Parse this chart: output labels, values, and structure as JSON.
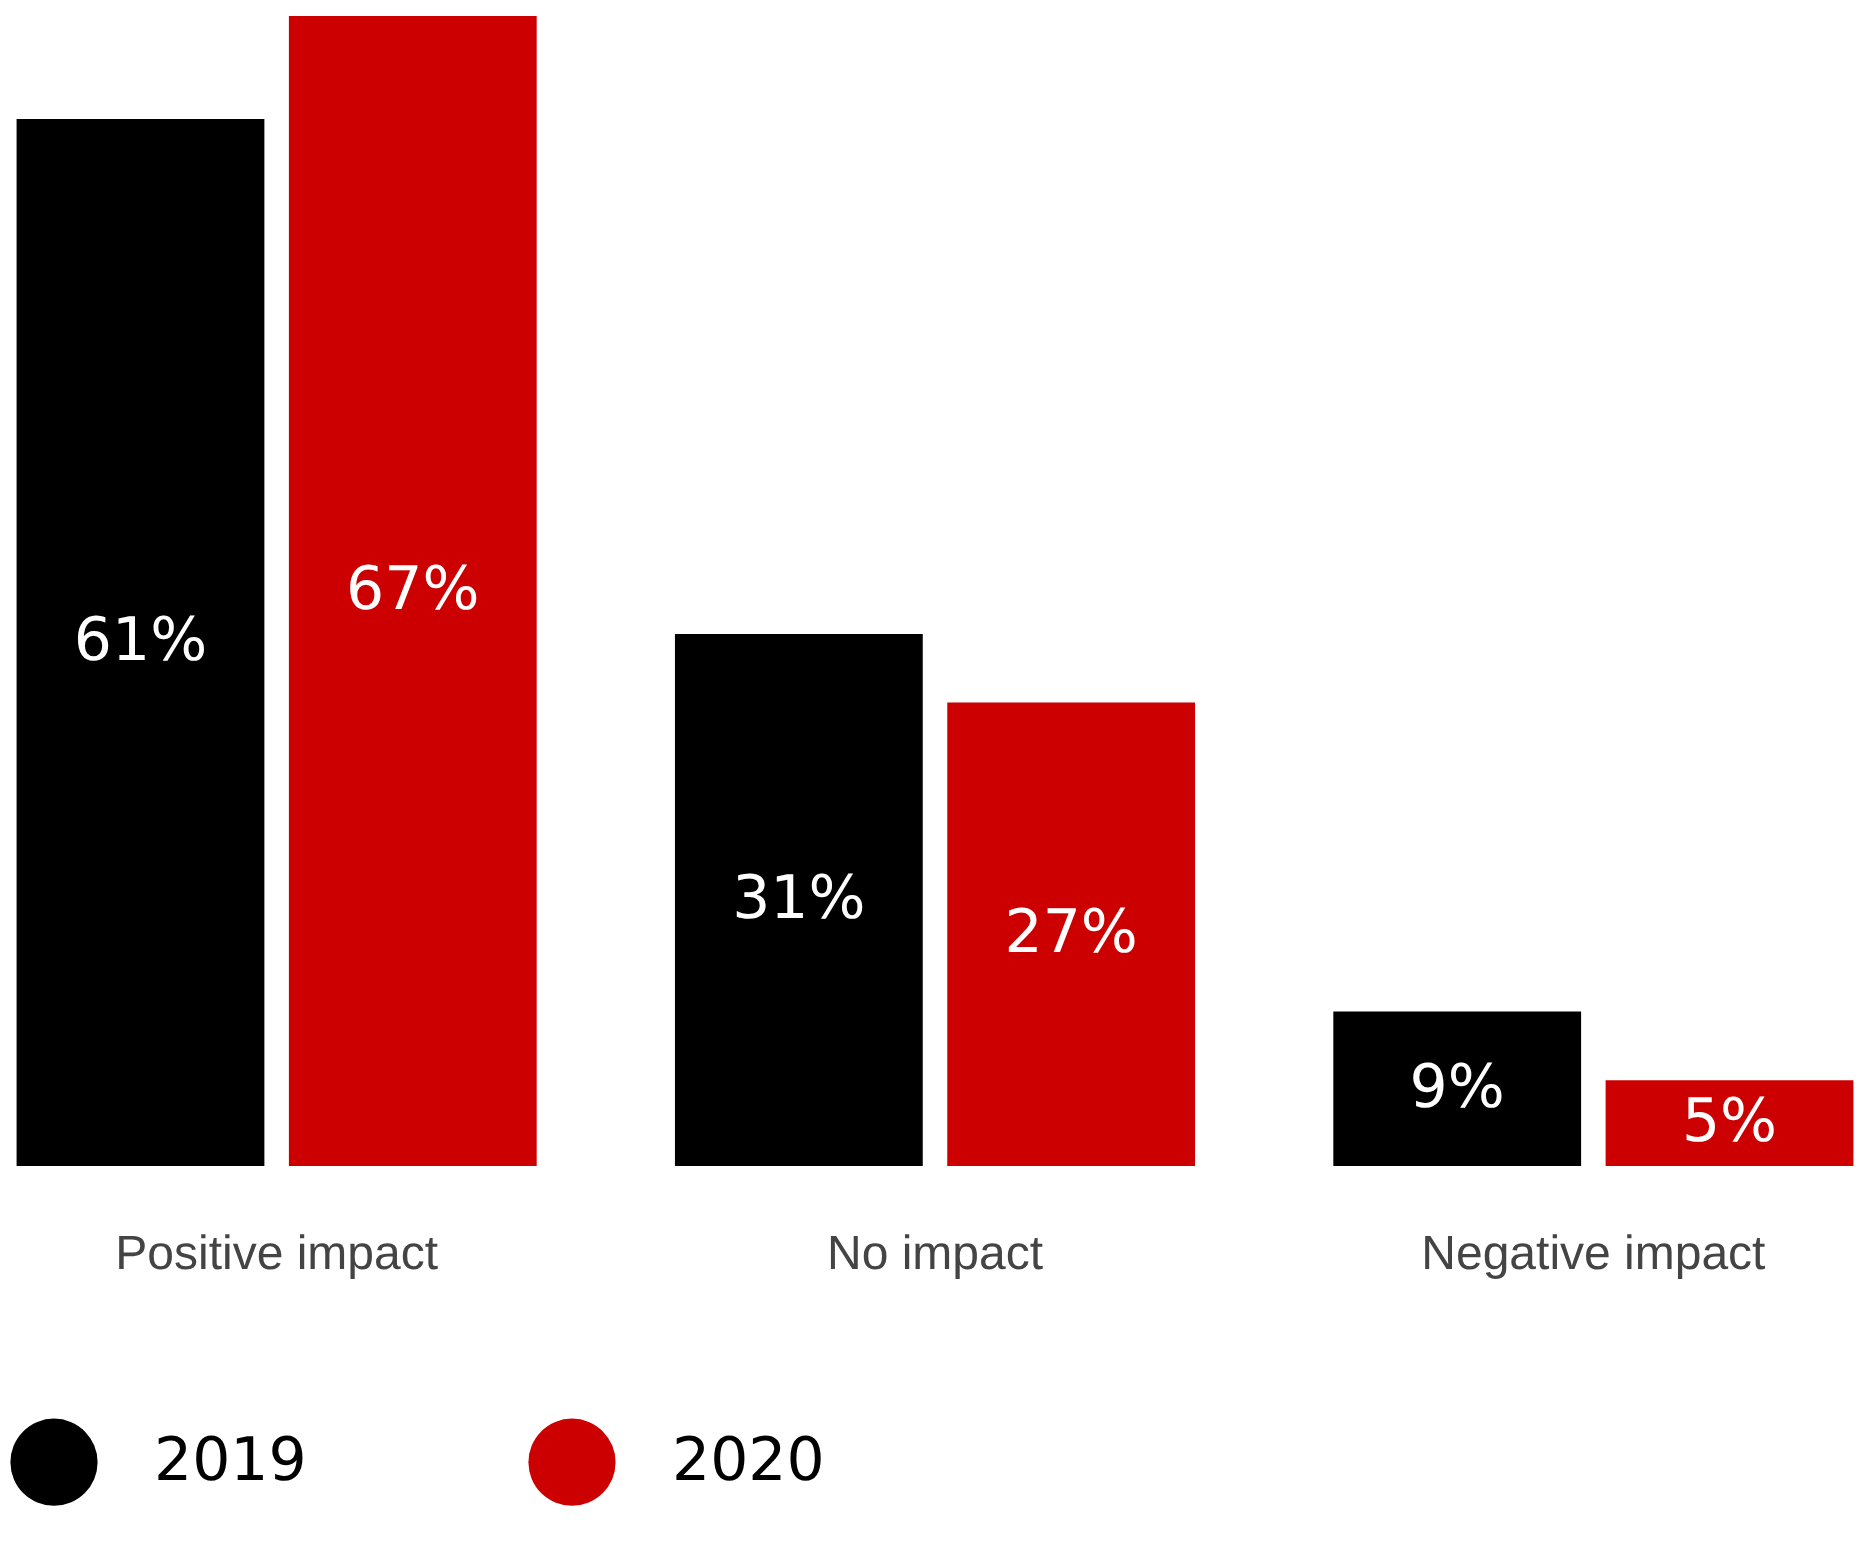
{
  "chart_data": {
    "type": "bar",
    "categories": [
      "Positive impact",
      "No impact",
      "Negative impact"
    ],
    "series": [
      {
        "name": "2019",
        "color": "#000000",
        "values": [
          61,
          31,
          9
        ],
        "value_labels": [
          "61%",
          "31%",
          "9%"
        ]
      },
      {
        "name": "2020",
        "color": "#cc0000",
        "values": [
          67,
          27,
          5
        ],
        "value_labels": [
          "67%",
          "27%",
          "5%"
        ]
      }
    ],
    "legend": "bottom",
    "grid": false
  }
}
